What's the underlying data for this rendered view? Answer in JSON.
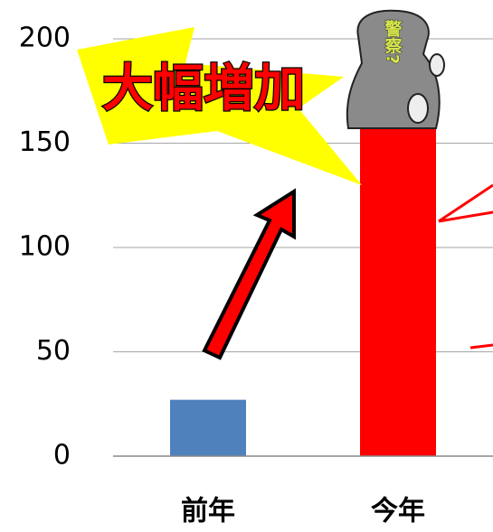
{
  "chart_data": {
    "type": "bar",
    "categories": [
      "前年",
      "今年"
    ],
    "values": [
      27,
      157
    ],
    "colors": [
      "#4f81bd",
      "#ff0000"
    ],
    "ylim": [
      0,
      200
    ],
    "yticks": [
      0,
      50,
      100,
      150,
      200
    ],
    "grid": true,
    "annotations": [
      "大幅増加",
      "警察?"
    ]
  }
}
